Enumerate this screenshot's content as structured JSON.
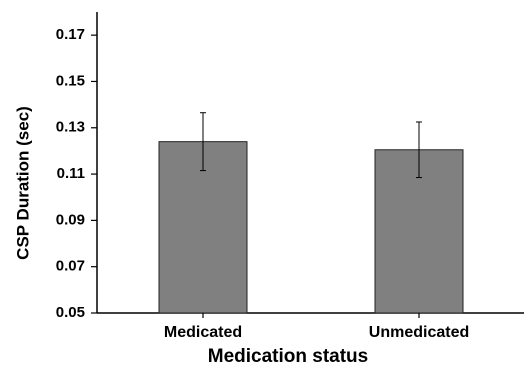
{
  "chart_data": {
    "type": "bar",
    "categories": [
      "Medicated",
      "Unmedicated"
    ],
    "values": [
      0.124,
      0.1205
    ],
    "error": [
      0.0125,
      0.012
    ],
    "xlabel": "Medication status",
    "ylabel": "CSP Duration (sec)",
    "ylim": [
      0.05,
      0.18
    ],
    "yticks": [
      "0.05",
      "0.07",
      "0.09",
      "0.11",
      "0.13",
      "0.15",
      "0.17"
    ],
    "grid": false,
    "colors": {
      "bar": "#808080",
      "bar_edge": "#222222",
      "axis": "#000000"
    }
  }
}
